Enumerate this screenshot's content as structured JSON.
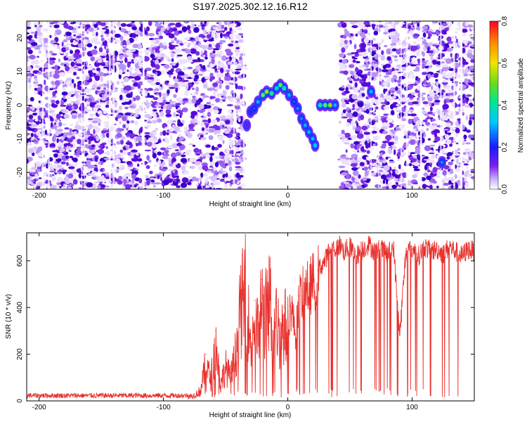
{
  "title": "S197.2025.302.12.16.R12",
  "chart_data": [
    {
      "type": "heatmap",
      "title": "S197.2025.302.12.16.R12",
      "xlabel": "Height of straight line (km)",
      "ylabel": "Frequency (Hz)",
      "xlim": [
        -210,
        150
      ],
      "ylim": [
        -25,
        25
      ],
      "xticks": [
        -200,
        -100,
        0,
        100
      ],
      "yticks": [
        -20,
        -10,
        0,
        10,
        20
      ],
      "colorbar": {
        "label": "Normalized spectral amplitude",
        "range": [
          0.0,
          0.8
        ],
        "ticks": [
          "0.0",
          "0.2",
          "0.4",
          "0.6",
          "0.8"
        ]
      },
      "noise_region_km": [
        [
          -210,
          -35
        ],
        [
          42,
          150
        ]
      ],
      "signal_trace": [
        {
          "x": -33,
          "y": -6,
          "v": 0.15
        },
        {
          "x": -30,
          "y": -2,
          "v": 0.2
        },
        {
          "x": -27,
          "y": -1,
          "v": 0.25
        },
        {
          "x": -24,
          "y": 1,
          "v": 0.35
        },
        {
          "x": -20,
          "y": 3,
          "v": 0.55
        },
        {
          "x": -17,
          "y": 4,
          "v": 0.62
        },
        {
          "x": -13,
          "y": 3.5,
          "v": 0.5
        },
        {
          "x": -9,
          "y": 5,
          "v": 0.4
        },
        {
          "x": -6,
          "y": 6,
          "v": 0.55
        },
        {
          "x": -3,
          "y": 5,
          "v": 0.45
        },
        {
          "x": 1,
          "y": 3,
          "v": 0.35
        },
        {
          "x": 5,
          "y": 1,
          "v": 0.25
        },
        {
          "x": 8,
          "y": -1,
          "v": 0.3
        },
        {
          "x": 11,
          "y": -4,
          "v": 0.3
        },
        {
          "x": 14,
          "y": -6,
          "v": 0.35
        },
        {
          "x": 17,
          "y": -8,
          "v": 0.35
        },
        {
          "x": 20,
          "y": -10,
          "v": 0.35
        },
        {
          "x": 22,
          "y": -12,
          "v": 0.4
        },
        {
          "x": 26,
          "y": 0,
          "v": 0.45
        },
        {
          "x": 30,
          "y": 0,
          "v": 0.55
        },
        {
          "x": 34,
          "y": 0,
          "v": 0.65
        },
        {
          "x": 38,
          "y": 0,
          "v": 0.35
        },
        {
          "x": 67,
          "y": 4,
          "v": 0.35
        },
        {
          "x": 124,
          "y": -17,
          "v": 0.3
        }
      ]
    },
    {
      "type": "line",
      "xlabel": "Height of straight line (km)",
      "ylabel": "SNR (10 * v/v)",
      "xlim": [
        -210,
        150
      ],
      "ylim": [
        0,
        720
      ],
      "xticks": [
        -200,
        -100,
        0,
        100
      ],
      "yticks": [
        0,
        200,
        400,
        600
      ],
      "color": "#e8302c",
      "series": [
        {
          "name": "SNR",
          "x": [
            -210,
            -190,
            -170,
            -150,
            -130,
            -110,
            -90,
            -80,
            -75,
            -70,
            -66,
            -62,
            -58,
            -54,
            -50,
            -46,
            -42,
            -38,
            -34,
            -30,
            -27,
            -24,
            -21,
            -18,
            -15,
            -12,
            -9,
            -6,
            -3,
            0,
            3,
            6,
            9,
            12,
            15,
            18,
            21,
            24,
            27,
            30,
            33,
            36,
            39,
            42,
            45,
            50,
            55,
            60,
            65,
            70,
            75,
            80,
            85,
            90,
            95,
            100,
            105,
            110,
            115,
            120,
            125,
            130,
            135,
            140,
            145,
            150
          ],
          "values": [
            18,
            17,
            19,
            16,
            18,
            17,
            19,
            22,
            30,
            55,
            200,
            110,
            300,
            90,
            180,
            120,
            250,
            480,
            600,
            300,
            430,
            350,
            520,
            450,
            600,
            300,
            420,
            350,
            400,
            380,
            420,
            300,
            450,
            480,
            500,
            520,
            540,
            560,
            580,
            600,
            640,
            660,
            650,
            670,
            640,
            660,
            620,
            650,
            670,
            640,
            650,
            630,
            660,
            280,
            640,
            650,
            620,
            660,
            640,
            650,
            630,
            660,
            640,
            620,
            650,
            640
          ]
        }
      ]
    }
  ]
}
